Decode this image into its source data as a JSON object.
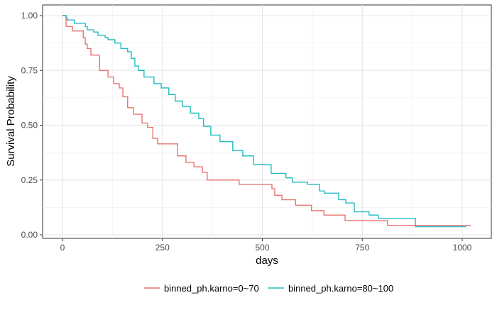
{
  "chart_data": {
    "type": "line",
    "subtype": "step (Kaplan-Meier)",
    "xlabel": "days",
    "ylabel": "Survival Probability",
    "xlim": [
      -50,
      1070
    ],
    "ylim": [
      0,
      1.0
    ],
    "x_ticks": [
      0,
      250,
      500,
      750,
      1000
    ],
    "x_tick_labels": [
      "0",
      "250",
      "500",
      "750",
      "1000"
    ],
    "y_ticks": [
      0,
      0.25,
      0.5,
      0.75,
      1.0
    ],
    "y_tick_labels": [
      "0.00",
      "0.25",
      "0.50",
      "0.75",
      "1.00"
    ],
    "grid": true,
    "legend_position": "bottom",
    "series": [
      {
        "name": "binned_ph.karno=0~70",
        "color": "#E7766F",
        "end_day": 1022,
        "steps": [
          [
            0,
            1.0
          ],
          [
            9,
            0.95
          ],
          [
            25,
            0.93
          ],
          [
            52,
            0.9
          ],
          [
            57,
            0.87
          ],
          [
            62,
            0.85
          ],
          [
            71,
            0.82
          ],
          [
            92,
            0.81
          ],
          [
            93,
            0.75
          ],
          [
            114,
            0.72
          ],
          [
            128,
            0.69
          ],
          [
            142,
            0.67
          ],
          [
            151,
            0.63
          ],
          [
            163,
            0.58
          ],
          [
            178,
            0.55
          ],
          [
            199,
            0.51
          ],
          [
            213,
            0.49
          ],
          [
            226,
            0.44
          ],
          [
            238,
            0.415
          ],
          [
            288,
            0.36
          ],
          [
            309,
            0.33
          ],
          [
            329,
            0.31
          ],
          [
            350,
            0.285
          ],
          [
            362,
            0.25
          ],
          [
            442,
            0.23
          ],
          [
            524,
            0.21
          ],
          [
            531,
            0.18
          ],
          [
            549,
            0.16
          ],
          [
            583,
            0.135
          ],
          [
            623,
            0.11
          ],
          [
            654,
            0.09
          ],
          [
            707,
            0.065
          ],
          [
            813,
            0.043
          ]
        ]
      },
      {
        "name": "binned_ph.karno=80~100",
        "color": "#22BCC2",
        "end_day": 1010,
        "steps": [
          [
            0,
            1.0
          ],
          [
            9,
            0.99
          ],
          [
            12,
            0.98
          ],
          [
            30,
            0.965
          ],
          [
            57,
            0.95
          ],
          [
            62,
            0.935
          ],
          [
            78,
            0.925
          ],
          [
            89,
            0.91
          ],
          [
            107,
            0.9
          ],
          [
            114,
            0.89
          ],
          [
            131,
            0.875
          ],
          [
            146,
            0.85
          ],
          [
            163,
            0.835
          ],
          [
            172,
            0.805
          ],
          [
            181,
            0.77
          ],
          [
            190,
            0.75
          ],
          [
            204,
            0.72
          ],
          [
            229,
            0.69
          ],
          [
            247,
            0.67
          ],
          [
            266,
            0.64
          ],
          [
            282,
            0.61
          ],
          [
            300,
            0.585
          ],
          [
            320,
            0.555
          ],
          [
            341,
            0.53
          ],
          [
            353,
            0.495
          ],
          [
            371,
            0.455
          ],
          [
            394,
            0.425
          ],
          [
            426,
            0.385
          ],
          [
            451,
            0.36
          ],
          [
            478,
            0.32
          ],
          [
            522,
            0.28
          ],
          [
            559,
            0.26
          ],
          [
            575,
            0.24
          ],
          [
            613,
            0.23
          ],
          [
            643,
            0.2
          ],
          [
            655,
            0.19
          ],
          [
            691,
            0.16
          ],
          [
            709,
            0.145
          ],
          [
            730,
            0.105
          ],
          [
            767,
            0.09
          ],
          [
            790,
            0.075
          ],
          [
            883,
            0.037
          ]
        ]
      }
    ]
  }
}
